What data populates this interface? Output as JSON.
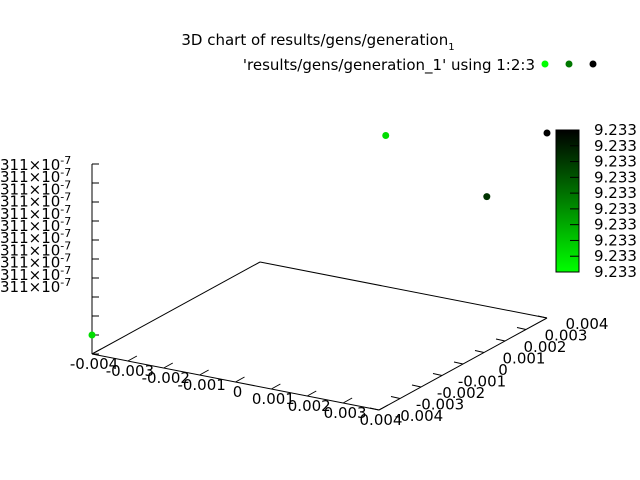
{
  "chart_data": {
    "type": "scatter",
    "title": "3D chart of results/gens/generation",
    "title_subscript": "1",
    "legend_label": "'results/gens/generation_1' using 1:2:3",
    "legend_placement": "top-right",
    "grid": false,
    "x_ticks": [
      "-0.004",
      "-0.003",
      "-0.002",
      "-0.001",
      "0",
      "0.001",
      "0.002",
      "0.003",
      "0.004"
    ],
    "y_ticks": [
      "-0.004",
      "-0.003",
      "-0.002",
      "-0.001",
      "0",
      "0.001",
      "0.002",
      "0.003",
      "0.004"
    ],
    "z_ticks": [
      "311×10-7",
      "311×10-7",
      "311×10-7",
      "311×10-7",
      "311×10-7",
      "311×10-7",
      "311×10-7",
      "311×10-7",
      "311×10-7",
      "311×10-7",
      "311×10-7"
    ],
    "z_tick_base": "311×10",
    "z_tick_exp": "-7",
    "xlim": [
      -0.004,
      0.004
    ],
    "ylim": [
      -0.004,
      0.004
    ],
    "zlim": [
      0,
      10
    ],
    "colorbar": {
      "labels": [
        "9.233",
        "9.233",
        "9.233",
        "9.233",
        "9.233",
        "9.233",
        "9.233",
        "9.233",
        "9.233",
        "9.233"
      ],
      "color_low": "#00ff00",
      "color_high": "#000000"
    },
    "points": [
      {
        "x": -0.004,
        "y": -0.004,
        "z": 1,
        "color": "#00dd00"
      },
      {
        "x": -0.00046,
        "y": 0.00394,
        "z": 8,
        "color": "#00dd00"
      },
      {
        "x": 0.0032,
        "y": 0.0025,
        "z": 7,
        "color": "#003300"
      }
    ]
  }
}
